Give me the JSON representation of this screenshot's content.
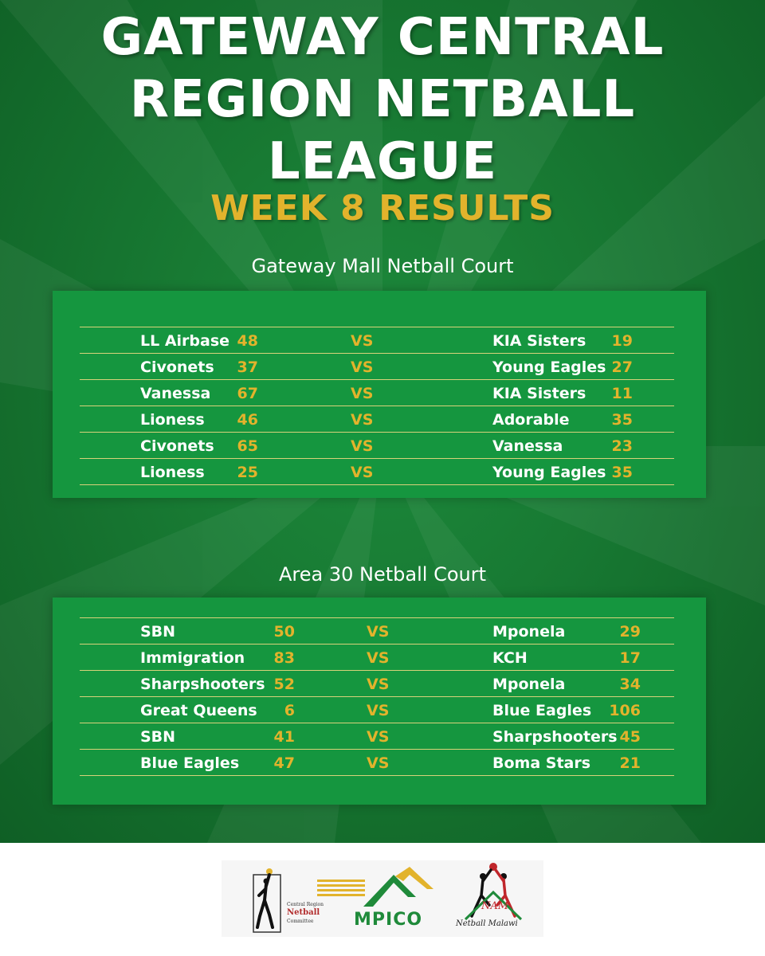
{
  "title_lines": [
    "GATEWAY CENTRAL",
    "REGION NETBALL",
    "LEAGUE"
  ],
  "subtitle": "WEEK 8 RESULTS",
  "venues": [
    {
      "name": "Gateway Mall Netball Court",
      "matches": [
        {
          "home": "LL Airbase",
          "home_score": "48",
          "vs": "VS",
          "away": "KIA Sisters",
          "away_score": "19"
        },
        {
          "home": "Civonets",
          "home_score": "37",
          "vs": "VS",
          "away": "Young Eagles",
          "away_score": "27"
        },
        {
          "home": "Vanessa",
          "home_score": "67",
          "vs": "VS",
          "away": "KIA Sisters",
          "away_score": "11"
        },
        {
          "home": "Lioness",
          "home_score": "46",
          "vs": "VS",
          "away": "Adorable",
          "away_score": "35"
        },
        {
          "home": "Civonets",
          "home_score": "65",
          "vs": "VS",
          "away": "Vanessa",
          "away_score": "23"
        },
        {
          "home": "Lioness",
          "home_score": "25",
          "vs": "VS",
          "away": "Young Eagles",
          "away_score": "35"
        }
      ]
    },
    {
      "name": "Area 30 Netball Court",
      "matches": [
        {
          "home": "SBN",
          "home_score": "50",
          "vs": "VS",
          "away": "Mponela",
          "away_score": "29"
        },
        {
          "home": "Immigration",
          "home_score": "83",
          "vs": "VS",
          "away": "KCH",
          "away_score": "17"
        },
        {
          "home": "Sharpshooters",
          "home_score": "52",
          "vs": "VS",
          "away": "Mponela",
          "away_score": "34"
        },
        {
          "home": "Great Queens",
          "home_score": "6",
          "vs": "VS",
          "away": "Blue Eagles",
          "away_score": "106"
        },
        {
          "home": "SBN",
          "home_score": "41",
          "vs": "VS",
          "away": "Sharpshooters",
          "away_score": "45"
        },
        {
          "home": "Blue Eagles",
          "home_score": "47",
          "vs": "VS",
          "away": "Boma Stars",
          "away_score": "21"
        }
      ]
    }
  ],
  "sponsors": {
    "crnc": {
      "line1": "Central Region",
      "line2": "Netball",
      "line3": "Committee",
      "icon": "netball-player-icon"
    },
    "mpico": {
      "name": "MPICO",
      "icon": "mpico-roof-icon"
    },
    "nam": {
      "abbr": "NAM",
      "full": "Netball Malawi",
      "icon": "netball-players-icon"
    }
  },
  "colors": {
    "background": "#187a33",
    "panel": "#15963f",
    "accent": "#e2b32c",
    "text": "#ffffff",
    "divider": "#d8d27a"
  }
}
